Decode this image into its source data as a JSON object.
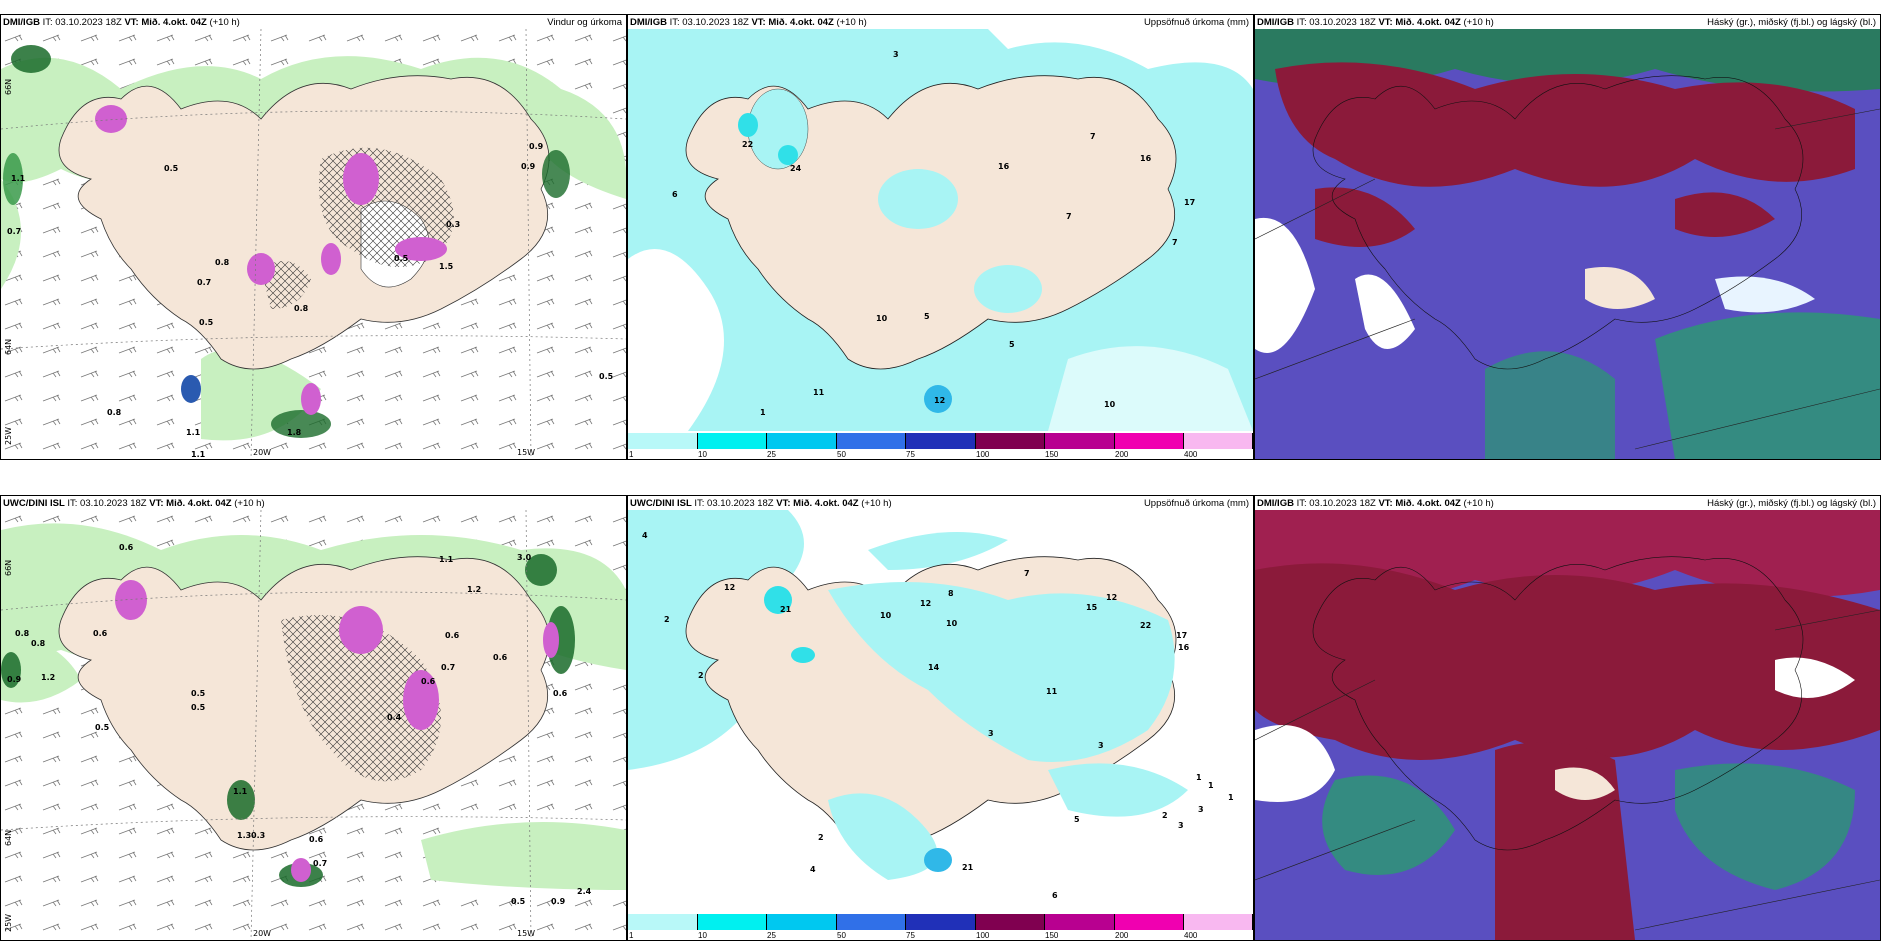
{
  "colors": {
    "land": "#f5e6d8",
    "precip_light": "#c8f0c0",
    "precip_mid": "#7ad07a",
    "precip_dark": "#1a6b2a",
    "convective": "#d060d0",
    "rain_cyan": "#a8f4f4",
    "rain_cyan2": "#30e0e8",
    "cloud_high": "#8b1a3a",
    "cloud_mid": "#5050c0",
    "cloud_low": "#2a9a70"
  },
  "panels": [
    {
      "source": "DMI/IGB",
      "it": "IT: 03.10.2023 18Z",
      "vt": "VT: Mið. 4.okt. 04Z",
      "lead": "(+10 h)",
      "title": "Vindur og úrkoma",
      "grid": {
        "lat1": "66N",
        "lat2": "64N",
        "lon1": "25W",
        "lon2": "20W",
        "lon3": "15W"
      },
      "labels": [
        "1.1",
        "0.7",
        "0.5",
        "0.9",
        "0.8",
        "0.7",
        "0.5",
        "0.8",
        "0.5",
        "1.8",
        "0.5",
        "1.1",
        "1.1",
        "1.5",
        "0.9",
        "0.3",
        "0.8"
      ]
    },
    {
      "source": "DMI/IGB",
      "it": "IT: 03.10.2023 18Z",
      "vt": "VT: Mið. 4.okt. 04Z",
      "lead": "(+10 h)",
      "title": "Uppsöfnuð úrkoma (mm)",
      "labels": [
        "3",
        "6",
        "22",
        "24",
        "7",
        "16",
        "16",
        "7",
        "17",
        "7",
        "10",
        "5",
        "5",
        "11",
        "1",
        "12",
        "10"
      ],
      "colorbar": {
        "ticks": [
          "1",
          "10",
          "25",
          "50",
          "75",
          "100",
          "150",
          "200",
          "400"
        ],
        "colors": [
          "#b8f8f8",
          "#00f0f0",
          "#00c8f0",
          "#3070e8",
          "#2030b8",
          "#800050",
          "#b80090",
          "#f000b0",
          "#f8b8f0"
        ]
      }
    },
    {
      "source": "DMI/IGB",
      "it": "IT: 03.10.2023 18Z",
      "vt": "VT: Mið. 4.okt. 04Z",
      "lead": "(+10 h)",
      "title": "Háský (gr.), miðský (fj.bl.) og lágský (bl.)"
    },
    {
      "source": "UWC/DINI ISL",
      "it": "IT: 03.10.2023 18Z",
      "vt": "VT: Mið. 4.okt. 04Z",
      "lead": "(+10 h)",
      "title": "",
      "grid": {
        "lat1": "66N",
        "lat2": "64N",
        "lon1": "25W",
        "lon2": "20W",
        "lon3": "15W"
      },
      "labels": [
        "0.6",
        "0.8",
        "0.8",
        "0.9",
        "1.2",
        "0.6",
        "0.5",
        "0.5",
        "0.5",
        "1.1",
        "1.3",
        "0.6",
        "0.7",
        "0.6",
        "0.4",
        "0.3",
        "0.7",
        "0.5",
        "0.9",
        "2.4",
        "1.1",
        "3.0",
        "0.6",
        "0.6",
        "0.6",
        "1.2"
      ]
    },
    {
      "source": "UWC/DINI ISL",
      "it": "IT: 03.10.2023 18Z",
      "vt": "VT: Mið. 4.okt. 04Z",
      "lead": "(+10 h)",
      "title": "Uppsöfnuð úrkoma (mm)",
      "labels": [
        "4",
        "2",
        "2",
        "10",
        "12",
        "21",
        "7",
        "8",
        "15",
        "12",
        "22",
        "17",
        "16",
        "12",
        "14",
        "10",
        "11",
        "3",
        "3",
        "2",
        "1",
        "6",
        "21",
        "3",
        "4",
        "2",
        "1",
        "3",
        "5",
        "1"
      ],
      "colorbar": {
        "ticks": [
          "1",
          "10",
          "25",
          "50",
          "75",
          "100",
          "150",
          "200",
          "400"
        ],
        "colors": [
          "#b8f8f8",
          "#00f0f0",
          "#00c8f0",
          "#3070e8",
          "#2030b8",
          "#800050",
          "#b80090",
          "#f000b0",
          "#f8b8f0"
        ]
      }
    },
    {
      "source": "DMI/IGB",
      "it": "IT: 03.10.2023 18Z",
      "vt": "VT: Mið. 4.okt. 04Z",
      "lead": "(+10 h)",
      "title": "Háský (gr.), miðský (fj.bl.) og lágský (bl.)"
    }
  ]
}
